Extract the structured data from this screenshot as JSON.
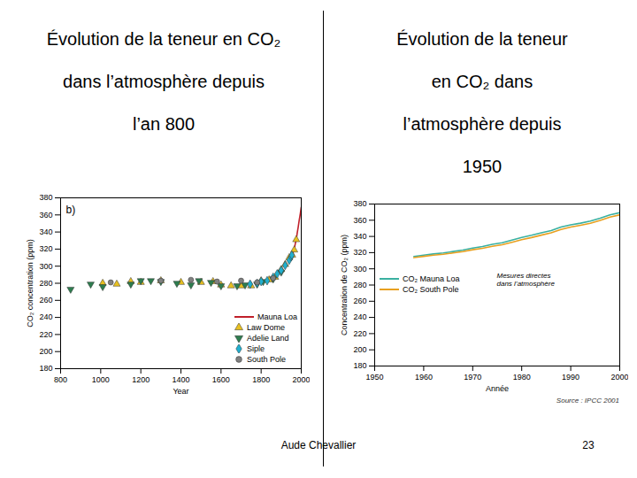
{
  "chart_data": [
    {
      "type": "line",
      "title": "Évolution de la teneur en CO₂\ndans l’atmosphère depuis\nl’an 800",
      "annotation": "b)",
      "x_label": "Year",
      "y_label": "CO₂ concentration (ppm)",
      "xlim": [
        800,
        2000
      ],
      "xticks": [
        800,
        1000,
        1200,
        1400,
        1600,
        1800,
        2000
      ],
      "ylim": [
        180,
        380
      ],
      "yticks": [
        180,
        200,
        220,
        240,
        260,
        280,
        300,
        320,
        340,
        360,
        380
      ],
      "legend": "lower right",
      "series": [
        {
          "name": "Mauna Loa",
          "type": "line",
          "color": "#c0202a",
          "line_style": "solid",
          "x": [
            1958,
            1965,
            1970,
            1975,
            1980,
            1985,
            1990,
            1995,
            2000
          ],
          "values": [
            315,
            320,
            326,
            331,
            339,
            346,
            354,
            361,
            369
          ]
        },
        {
          "name": "Law Dome",
          "type": "scatter",
          "color": "#e8c020",
          "marker": "triangle-up",
          "x": [
            1010,
            1080,
            1150,
            1200,
            1300,
            1400,
            1500,
            1560,
            1600,
            1650,
            1700,
            1750,
            1800,
            1840,
            1870,
            1900,
            1920,
            1940,
            1955,
            1965,
            1975
          ],
          "values": [
            280,
            279,
            282,
            281,
            283,
            281,
            281,
            282,
            278,
            277,
            277,
            277,
            283,
            284,
            287,
            296,
            302,
            310,
            313,
            319,
            331
          ]
        },
        {
          "name": "Adelie Land",
          "type": "scatter",
          "color": "#2e7d4f",
          "marker": "triangle-down",
          "x": [
            850,
            950,
            1010,
            1150,
            1200,
            1250,
            1300,
            1380,
            1450,
            1490,
            1550,
            1600,
            1680,
            1720,
            1780,
            1810,
            1860,
            1900
          ],
          "values": [
            273,
            279,
            276,
            279,
            283,
            283,
            282,
            280,
            278,
            283,
            281,
            277,
            277,
            278,
            279,
            282,
            285,
            293
          ]
        },
        {
          "name": "Siple",
          "type": "scatter",
          "color": "#20b0d0",
          "marker": "diamond",
          "x": [
            1745,
            1780,
            1800,
            1830,
            1860,
            1880,
            1900,
            1920,
            1940,
            1950,
            1953
          ],
          "values": [
            279,
            280,
            282,
            283,
            287,
            291,
            295,
            301,
            307,
            311,
            313
          ]
        },
        {
          "name": "South Pole",
          "type": "scatter",
          "color": "#808080",
          "marker": "circle",
          "x": [
            1050,
            1300,
            1450,
            1580,
            1700,
            1780,
            1860
          ],
          "values": [
            281,
            283,
            284,
            282,
            283,
            281,
            286
          ]
        }
      ]
    },
    {
      "type": "line",
      "title": "Évolution de la teneur\nen CO₂ dans\nl’atmosphère depuis\n1950",
      "annotation": "Mesures directes\ndans l’atmosphère",
      "source": "Source : IPCC 2001",
      "x_label": "Année",
      "y_label": "Concentration de CO₂ (ppm)",
      "xlim": [
        1950,
        2000
      ],
      "xticks": [
        1950,
        1960,
        1970,
        1980,
        1990,
        2000
      ],
      "ylim": [
        180,
        380
      ],
      "yticks": [
        180,
        200,
        220,
        240,
        260,
        280,
        300,
        320,
        340,
        360,
        380
      ],
      "legend": "center left",
      "x": [
        1958,
        1960,
        1962,
        1964,
        1966,
        1968,
        1970,
        1972,
        1974,
        1976,
        1978,
        1980,
        1982,
        1984,
        1986,
        1988,
        1990,
        1992,
        1994,
        1996,
        1998,
        2000
      ],
      "series": [
        {
          "name": "CO₂ Mauna Loa",
          "color": "#3ab0a0",
          "line_style": "solid",
          "values": [
            315.3,
            316.9,
            318.4,
            319.6,
            321.4,
            323.1,
            325.7,
            327.5,
            330.2,
            332.1,
            335.4,
            338.7,
            341.4,
            344.4,
            347.2,
            351.6,
            354.4,
            356.4,
            358.9,
            362.6,
            366.7,
            369.4
          ]
        },
        {
          "name": "CO₂ South Pole",
          "color": "#e8a020",
          "line_style": "solid",
          "values": [
            313.8,
            315.4,
            316.8,
            317.9,
            319.6,
            321.2,
            323.6,
            325.4,
            327.8,
            329.8,
            332.8,
            336.0,
            338.6,
            341.6,
            344.4,
            348.6,
            351.6,
            353.8,
            356.2,
            359.8,
            363.8,
            366.6
          ]
        }
      ]
    }
  ],
  "footer": {
    "author": "Aude Chevallier",
    "page": 23
  }
}
